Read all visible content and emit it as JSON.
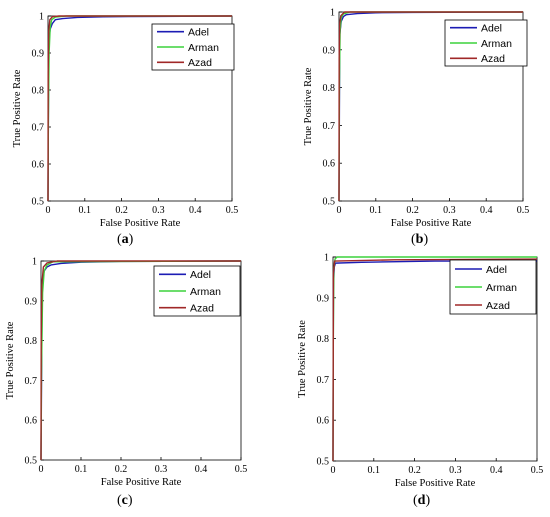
{
  "colors": {
    "Adel": "#1c1cb4",
    "Arman": "#3cd23c",
    "Azad": "#a02828"
  },
  "panels": [
    {
      "caption_letter": "a",
      "chart_data": {
        "type": "line",
        "xlabel": "False Positive Rate",
        "ylabel": "True Positive Rate",
        "xlim": [
          0,
          0.5
        ],
        "ylim": [
          0.5,
          1
        ],
        "xticks": [
          "0",
          "0.1",
          "0.2",
          "0.3",
          "0.4",
          "0.5"
        ],
        "yticks": [
          "0.5",
          "0.6",
          "0.7",
          "0.8",
          "0.9",
          "1"
        ],
        "legend": "top-right",
        "series": [
          {
            "name": "Adel",
            "x": [
              0,
              0.002,
              0.006,
              0.012,
              0.02,
              0.04,
              0.08,
              0.15,
              0.3,
              0.5
            ],
            "y": [
              0.5,
              0.93,
              0.965,
              0.98,
              0.99,
              0.993,
              0.996,
              0.998,
              0.999,
              1
            ]
          },
          {
            "name": "Arman",
            "x": [
              0,
              0.001,
              0.003,
              0.006,
              0.01,
              0.02,
              0.05,
              0.5
            ],
            "y": [
              0.5,
              0.72,
              0.9,
              0.97,
              0.99,
              0.997,
              1,
              1
            ]
          },
          {
            "name": "Azad",
            "x": [
              0,
              0.0005,
              0.002,
              0.005,
              0.012,
              0.03,
              0.5
            ],
            "y": [
              0.5,
              0.85,
              0.96,
              0.99,
              0.998,
              1,
              1
            ]
          }
        ]
      }
    },
    {
      "caption_letter": "b",
      "chart_data": {
        "type": "line",
        "xlabel": "False Positive Rate",
        "ylabel": "True Positive Rate",
        "xlim": [
          0,
          0.5
        ],
        "ylim": [
          0.5,
          1
        ],
        "xticks": [
          "0",
          "0.1",
          "0.2",
          "0.3",
          "0.4",
          "0.5"
        ],
        "yticks": [
          "0.5",
          "0.6",
          "0.7",
          "0.8",
          "0.9",
          "1"
        ],
        "legend": "top-right",
        "series": [
          {
            "name": "Adel",
            "x": [
              0,
              0.002,
              0.006,
              0.012,
              0.02,
              0.05,
              0.1,
              0.2,
              0.5
            ],
            "y": [
              0.5,
              0.94,
              0.975,
              0.988,
              0.993,
              0.996,
              0.998,
              0.999,
              1
            ]
          },
          {
            "name": "Arman",
            "x": [
              0,
              0.001,
              0.003,
              0.006,
              0.012,
              0.03,
              0.5
            ],
            "y": [
              0.5,
              0.8,
              0.95,
              0.985,
              0.995,
              1,
              1
            ]
          },
          {
            "name": "Azad",
            "x": [
              0,
              0.0005,
              0.002,
              0.005,
              0.015,
              0.5
            ],
            "y": [
              0.5,
              0.88,
              0.97,
              0.99,
              1,
              1
            ]
          }
        ]
      }
    },
    {
      "caption_letter": "c",
      "chart_data": {
        "type": "line",
        "xlabel": "False Positive Rate",
        "ylabel": "True Positive Rate",
        "xlim": [
          0,
          0.5
        ],
        "ylim": [
          0.5,
          1
        ],
        "xticks": [
          "0",
          "0.1",
          "0.2",
          "0.3",
          "0.4",
          "0.5"
        ],
        "yticks": [
          "0.5",
          "0.6",
          "0.7",
          "0.8",
          "0.9",
          "1"
        ],
        "legend": "top-right",
        "series": [
          {
            "name": "Adel",
            "x": [
              0,
              0.003,
              0.008,
              0.015,
              0.025,
              0.05,
              0.1,
              0.2,
              0.5
            ],
            "y": [
              0.5,
              0.95,
              0.975,
              0.985,
              0.99,
              0.994,
              0.997,
              0.999,
              1
            ]
          },
          {
            "name": "Arman",
            "x": [
              0,
              0.001,
              0.004,
              0.008,
              0.015,
              0.03,
              0.5
            ],
            "y": [
              0.5,
              0.7,
              0.92,
              0.975,
              0.99,
              0.998,
              1
            ]
          },
          {
            "name": "Azad",
            "x": [
              0,
              0.0005,
              0.002,
              0.006,
              0.015,
              0.04,
              0.5
            ],
            "y": [
              0.5,
              0.8,
              0.94,
              0.985,
              0.995,
              1,
              1
            ]
          }
        ]
      }
    },
    {
      "caption_letter": "d",
      "chart_data": {
        "type": "line",
        "xlabel": "False Positive Rate",
        "ylabel": "True Positive Rate",
        "xlim": [
          0,
          0.5
        ],
        "ylim": [
          0.5,
          1
        ],
        "xticks": [
          "0",
          "0.1",
          "0.2",
          "0.3",
          "0.4",
          "0.5"
        ],
        "yticks": [
          "0.5",
          "0.6",
          "0.7",
          "0.8",
          "0.9",
          "1"
        ],
        "legend": "top-right",
        "series": [
          {
            "name": "Adel",
            "x": [
              0,
              0.001,
              0.003,
              0.006,
              0.07,
              0.25,
              0.5
            ],
            "y": [
              0.5,
              0.92,
              0.975,
              0.985,
              0.987,
              0.99,
              0.99
            ]
          },
          {
            "name": "Arman",
            "x": [
              0,
              0.0005,
              0.002,
              0.005,
              0.01,
              0.5
            ],
            "y": [
              0.5,
              0.75,
              0.97,
              0.995,
              1,
              1
            ]
          },
          {
            "name": "Azad",
            "x": [
              0,
              0.001,
              0.004,
              0.15,
              0.5
            ],
            "y": [
              0.5,
              0.96,
              0.99,
              0.993,
              0.995
            ]
          }
        ]
      }
    }
  ]
}
